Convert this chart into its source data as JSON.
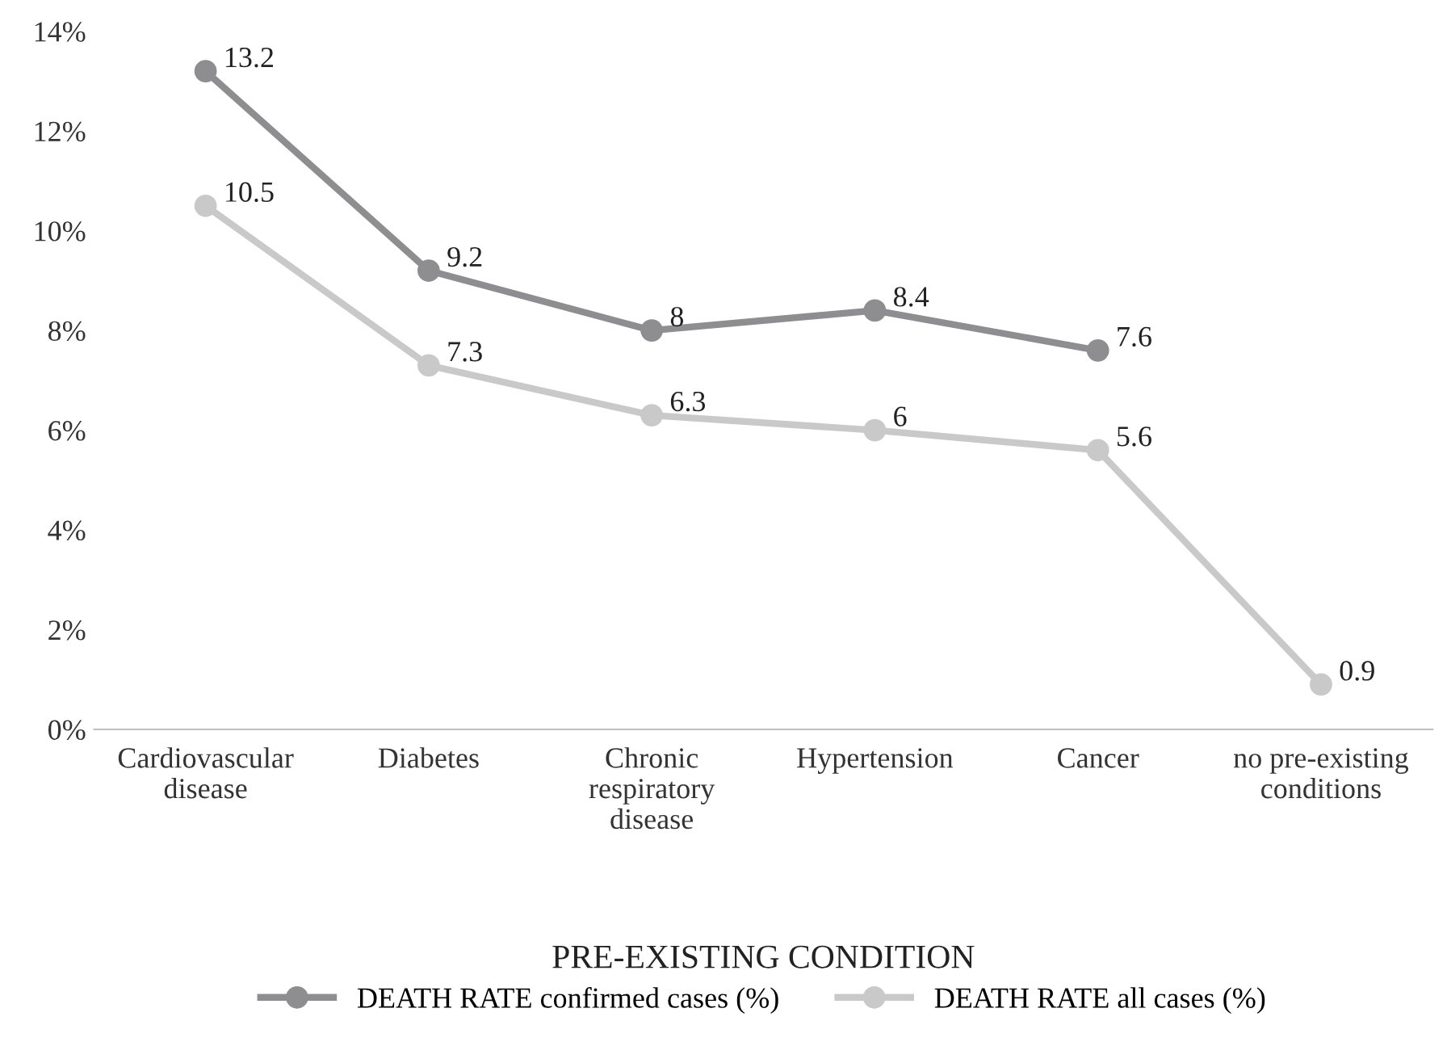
{
  "chart_data": {
    "type": "line",
    "xlabel": "PRE-EXISTING CONDITION",
    "categories": [
      "Cardiovascular\ndisease",
      "Diabetes",
      "Chronic\nrespiratory\ndisease",
      "Hypertension",
      "Cancer",
      "no pre-existing\nconditions"
    ],
    "series": [
      {
        "name": "DEATH RATE confirmed cases (%)",
        "color": "#8e8e90",
        "values": [
          13.2,
          9.2,
          8,
          8.4,
          7.6,
          null
        ]
      },
      {
        "name": "DEATH RATE all cases (%)",
        "color": "#c9c9c9",
        "values": [
          10.5,
          7.3,
          6.3,
          6,
          5.6,
          0.9
        ]
      }
    ],
    "ylim": [
      0,
      14
    ],
    "yticks": [
      {
        "value": 0,
        "label": "0%"
      },
      {
        "value": 2,
        "label": "2%"
      },
      {
        "value": 4,
        "label": "4%"
      },
      {
        "value": 6,
        "label": "6%"
      },
      {
        "value": 8,
        "label": "8%"
      },
      {
        "value": 10,
        "label": "10%"
      },
      {
        "value": 12,
        "label": "12%"
      },
      {
        "value": 14,
        "label": "14%"
      }
    ],
    "data_labels": true,
    "grid": false,
    "legend": "bottom",
    "marker": "circle",
    "line_style": "solid"
  }
}
